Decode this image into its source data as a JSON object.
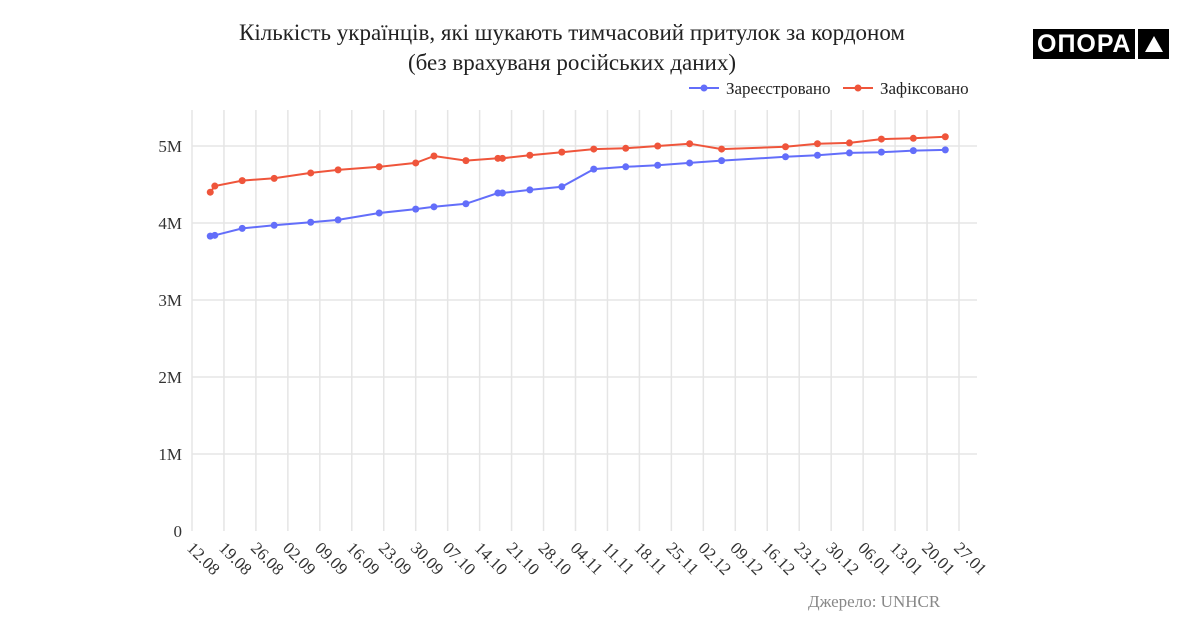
{
  "logo": {
    "text": "ОПОРА"
  },
  "source": "Джерело: UNHCR",
  "colors": {
    "registered": "#636efa",
    "recorded": "#ef553b",
    "grid": "#e5e5e5"
  },
  "chart_data": {
    "type": "line",
    "title": "Кількість українців, які шукають тимчасовий притулок за кордоном",
    "subtitle": "(без врахуваня російських даних)",
    "xlabel": "",
    "ylabel": "",
    "ylim": [
      0,
      5400000
    ],
    "xlim": [
      "2022-08-12",
      "2023-01-27"
    ],
    "y_ticks": [
      0,
      1000000,
      2000000,
      3000000,
      4000000,
      5000000
    ],
    "y_tick_labels": [
      "0",
      "1M",
      "2M",
      "3M",
      "4M",
      "5M"
    ],
    "x_ticks": [
      "2022-08-12",
      "2022-08-19",
      "2022-08-26",
      "2022-09-02",
      "2022-09-09",
      "2022-09-16",
      "2022-09-23",
      "2022-09-30",
      "2022-10-07",
      "2022-10-14",
      "2022-10-21",
      "2022-10-28",
      "2022-11-04",
      "2022-11-11",
      "2022-11-18",
      "2022-11-25",
      "2022-12-02",
      "2022-12-09",
      "2022-12-16",
      "2022-12-23",
      "2022-12-30",
      "2023-01-06",
      "2023-01-13",
      "2023-01-20",
      "2023-01-27"
    ],
    "x_tick_labels": [
      "12.08",
      "19.08",
      "26.08",
      "02.09",
      "09.09",
      "16.09",
      "23.09",
      "30.09",
      "07.10",
      "14.10",
      "21.10",
      "28.10",
      "04.11",
      "11.11",
      "18.11",
      "25.11",
      "02.12",
      "09.12",
      "16.12",
      "23.12",
      "30.12",
      "06.01",
      "13.01",
      "20.01",
      "27.01"
    ],
    "grid": true,
    "legend_position": "top-right",
    "x": [
      "2022-08-16",
      "2022-08-17",
      "2022-08-23",
      "2022-08-30",
      "2022-09-07",
      "2022-09-13",
      "2022-09-22",
      "2022-09-30",
      "2022-10-04",
      "2022-10-11",
      "2022-10-18",
      "2022-10-19",
      "2022-10-25",
      "2022-11-01",
      "2022-11-08",
      "2022-11-15",
      "2022-11-22",
      "2022-11-29",
      "2022-12-06",
      "2022-12-20",
      "2022-12-27",
      "2023-01-03",
      "2023-01-10",
      "2023-01-17",
      "2023-01-24"
    ],
    "series": [
      {
        "name": "Зареєстровано",
        "key": "registered",
        "values": [
          3830000,
          3840000,
          3930000,
          3970000,
          4010000,
          4040000,
          4130000,
          4180000,
          4210000,
          4250000,
          4390000,
          4390000,
          4430000,
          4470000,
          4700000,
          4730000,
          4750000,
          4780000,
          4810000,
          4860000,
          4880000,
          4910000,
          4920000,
          4940000,
          4950000
        ]
      },
      {
        "name": "Зафіксовано",
        "key": "recorded",
        "values": [
          4400000,
          4480000,
          4550000,
          4580000,
          4650000,
          4690000,
          4730000,
          4780000,
          4870000,
          4810000,
          4840000,
          4840000,
          4880000,
          4920000,
          4960000,
          4970000,
          5000000,
          5030000,
          4960000,
          4990000,
          5030000,
          5040000,
          5090000,
          5100000,
          5120000
        ]
      }
    ]
  }
}
